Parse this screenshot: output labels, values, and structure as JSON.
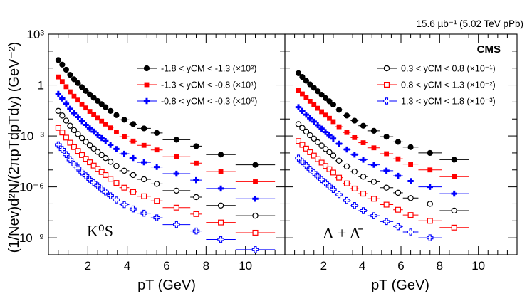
{
  "figure": {
    "luminosity": "15.6 µb⁻¹ (5.02 TeV pPb)",
    "experiment": "CMS",
    "ylabel": "(1/Nev)d²N/(2πpTdpTdy) (GeV⁻²)"
  },
  "chart_data": [
    {
      "type": "scatter",
      "panel": "left",
      "species_label": "K⁰S",
      "xlabel": "pT (GeV)",
      "ylabel": "(1/Nev)d²N/(2πpTdpTdy) (GeV⁻²)",
      "xlim": [
        0,
        12
      ],
      "ylim": [
        1e-10,
        1000.0
      ],
      "yscale": "log",
      "x_ticks": [
        "2",
        "4",
        "6",
        "8",
        "10"
      ],
      "y_ticks": [
        "10³",
        "1",
        "10⁻³",
        "10⁻⁶",
        "10⁻⁹"
      ],
      "legend_position": "top-right",
      "series": [
        {
          "name": "-1.8 < yCM < -1.3 (×10²)",
          "color": "#000000",
          "marker": "filled-circle",
          "x": [
            0.5,
            0.7,
            0.9,
            1.1,
            1.3,
            1.5,
            1.7,
            1.9,
            2.1,
            2.3,
            2.5,
            2.7,
            2.9,
            3.15,
            3.45,
            3.85,
            4.3,
            4.85,
            5.5,
            6.5,
            7.5,
            8.75,
            10.5
          ],
          "xerr": [
            0.1,
            0.1,
            0.1,
            0.1,
            0.1,
            0.1,
            0.1,
            0.1,
            0.1,
            0.1,
            0.1,
            0.1,
            0.1,
            0.15,
            0.15,
            0.25,
            0.2,
            0.35,
            0.3,
            0.7,
            0.3,
            0.75,
            1.0
          ],
          "y": [
            30,
            16,
            8,
            4,
            2.2,
            1.3,
            0.75,
            0.45,
            0.28,
            0.18,
            0.115,
            0.075,
            0.05,
            0.03,
            0.017,
            0.009,
            0.005,
            0.0028,
            0.0015,
            0.0006,
            0.00025,
            8e-05,
            2e-05
          ]
        },
        {
          "name": "-1.3 < yCM < -0.8 (×10¹)",
          "color": "#ff0000",
          "marker": "filled-square",
          "x": [
            0.5,
            0.7,
            0.9,
            1.1,
            1.3,
            1.5,
            1.7,
            1.9,
            2.1,
            2.3,
            2.5,
            2.7,
            2.9,
            3.15,
            3.45,
            3.85,
            4.3,
            4.85,
            5.5,
            6.5,
            7.5,
            8.75,
            10.5
          ],
          "xerr": [
            0.1,
            0.1,
            0.1,
            0.1,
            0.1,
            0.1,
            0.1,
            0.1,
            0.1,
            0.1,
            0.1,
            0.1,
            0.1,
            0.15,
            0.15,
            0.25,
            0.2,
            0.35,
            0.3,
            0.7,
            0.3,
            0.75,
            1.0
          ],
          "y": [
            3,
            1.6,
            0.8,
            0.4,
            0.22,
            0.13,
            0.075,
            0.045,
            0.028,
            0.018,
            0.0115,
            0.0075,
            0.005,
            0.003,
            0.0017,
            0.0009,
            0.0005,
            0.00028,
            0.00015,
            6e-05,
            2.5e-05,
            8e-06,
            2e-06
          ]
        },
        {
          "name": "-0.8 < yCM < -0.3 (×10⁰)",
          "color": "#0000ff",
          "marker": "filled-cross",
          "x": [
            0.5,
            0.7,
            0.9,
            1.1,
            1.3,
            1.5,
            1.7,
            1.9,
            2.1,
            2.3,
            2.5,
            2.7,
            2.9,
            3.15,
            3.45,
            3.85,
            4.3,
            4.85,
            5.5,
            6.5,
            7.5,
            8.75,
            10.5
          ],
          "xerr": [
            0.1,
            0.1,
            0.1,
            0.1,
            0.1,
            0.1,
            0.1,
            0.1,
            0.1,
            0.1,
            0.1,
            0.1,
            0.1,
            0.15,
            0.15,
            0.25,
            0.2,
            0.35,
            0.3,
            0.7,
            0.3,
            0.75,
            1.0
          ],
          "y": [
            0.3,
            0.16,
            0.08,
            0.04,
            0.022,
            0.013,
            0.0075,
            0.0045,
            0.0028,
            0.0018,
            0.00115,
            0.00075,
            0.0005,
            0.0003,
            0.00017,
            9e-05,
            5e-05,
            2.8e-05,
            1.5e-05,
            6e-06,
            2.5e-06,
            8e-07,
            2e-07
          ]
        },
        {
          "name": "0.3 < yCM < 0.8 (×10⁻¹)",
          "color": "#000000",
          "marker": "open-circle",
          "x": [
            0.5,
            0.7,
            0.9,
            1.1,
            1.3,
            1.5,
            1.7,
            1.9,
            2.1,
            2.3,
            2.5,
            2.7,
            2.9,
            3.15,
            3.45,
            3.85,
            4.3,
            4.85,
            5.5,
            6.5,
            7.5,
            8.75,
            10.5
          ],
          "xerr": [
            0.1,
            0.1,
            0.1,
            0.1,
            0.1,
            0.1,
            0.1,
            0.1,
            0.1,
            0.1,
            0.1,
            0.1,
            0.1,
            0.15,
            0.15,
            0.25,
            0.2,
            0.35,
            0.3,
            0.7,
            0.3,
            0.75,
            1.0
          ],
          "y": [
            0.03,
            0.016,
            0.008,
            0.004,
            0.0022,
            0.0013,
            0.00075,
            0.00045,
            0.00028,
            0.00018,
            0.000115,
            7.5e-05,
            5e-05,
            3e-05,
            1.7e-05,
            9e-06,
            5e-06,
            2.8e-06,
            1.5e-06,
            6e-07,
            2.5e-07,
            8e-08,
            2e-08
          ]
        },
        {
          "name": "0.8 < yCM < 1.3 (×10⁻²)",
          "color": "#ff0000",
          "marker": "open-square",
          "x": [
            0.5,
            0.7,
            0.9,
            1.1,
            1.3,
            1.5,
            1.7,
            1.9,
            2.1,
            2.3,
            2.5,
            2.7,
            2.9,
            3.15,
            3.45,
            3.85,
            4.3,
            4.85,
            5.5,
            6.5,
            7.5,
            8.75,
            10.5
          ],
          "xerr": [
            0.1,
            0.1,
            0.1,
            0.1,
            0.1,
            0.1,
            0.1,
            0.1,
            0.1,
            0.1,
            0.1,
            0.1,
            0.1,
            0.15,
            0.15,
            0.25,
            0.2,
            0.35,
            0.3,
            0.7,
            0.3,
            0.75,
            1.0
          ],
          "y": [
            0.003,
            0.0016,
            0.0008,
            0.0004,
            0.00022,
            0.00013,
            7.5e-05,
            4.5e-05,
            2.8e-05,
            1.8e-05,
            1.15e-05,
            7.5e-06,
            5e-06,
            3e-06,
            1.7e-06,
            9e-07,
            5e-07,
            2.8e-07,
            1.5e-07,
            6e-08,
            2.5e-08,
            8e-09,
            2e-09
          ]
        },
        {
          "name": "1.3 < yCM < 1.8 (×10⁻³)",
          "color": "#0000ff",
          "marker": "open-cross",
          "x": [
            0.5,
            0.7,
            0.9,
            1.1,
            1.3,
            1.5,
            1.7,
            1.9,
            2.1,
            2.3,
            2.5,
            2.7,
            2.9,
            3.15,
            3.45,
            3.85,
            4.3,
            4.85,
            5.5,
            6.5,
            7.5,
            8.75,
            10.5
          ],
          "xerr": [
            0.1,
            0.1,
            0.1,
            0.1,
            0.1,
            0.1,
            0.1,
            0.1,
            0.1,
            0.1,
            0.1,
            0.1,
            0.1,
            0.15,
            0.15,
            0.25,
            0.2,
            0.35,
            0.3,
            0.7,
            0.3,
            0.75,
            1.0
          ],
          "y": [
            0.0003,
            0.00016,
            8e-05,
            4e-05,
            2.2e-05,
            1.3e-05,
            7.5e-06,
            4.5e-06,
            2.8e-06,
            1.8e-06,
            1.15e-06,
            7.5e-07,
            5e-07,
            3e-07,
            1.7e-07,
            9e-08,
            5e-08,
            2.8e-08,
            1.5e-08,
            6e-09,
            2.5e-09,
            8e-10,
            2e-10
          ]
        }
      ]
    },
    {
      "type": "scatter",
      "panel": "right",
      "species_label": "Λ + Λ̄",
      "xlabel": "pT (GeV)",
      "xlim": [
        0,
        12
      ],
      "ylim": [
        1e-10,
        1000.0
      ],
      "yscale": "log",
      "x_ticks": [
        "2",
        "4",
        "6",
        "8",
        "10"
      ],
      "legend_position": "top-right",
      "series": [
        {
          "name": "-1.8 < yCM < -1.3 (×10²)",
          "color": "#000000",
          "marker": "filled-circle",
          "x": [
            0.7,
            0.9,
            1.1,
            1.3,
            1.5,
            1.7,
            1.9,
            2.1,
            2.3,
            2.5,
            2.8,
            3.2,
            3.6,
            4.05,
            4.6,
            5.25,
            5.85,
            6.5,
            7.5,
            8.75
          ],
          "xerr": [
            0.1,
            0.1,
            0.1,
            0.1,
            0.1,
            0.1,
            0.1,
            0.1,
            0.1,
            0.1,
            0.2,
            0.2,
            0.2,
            0.25,
            0.3,
            0.35,
            0.25,
            0.4,
            0.6,
            0.75
          ],
          "y": [
            5,
            3,
            1.8,
            1.1,
            0.7,
            0.43,
            0.27,
            0.17,
            0.11,
            0.07,
            0.035,
            0.016,
            0.008,
            0.004,
            0.002,
            0.0009,
            0.00045,
            0.00022,
            0.0001,
            4e-05
          ]
        },
        {
          "name": "-1.3 < yCM < -0.8 (×10¹)",
          "color": "#ff0000",
          "marker": "filled-square",
          "x": [
            0.7,
            0.9,
            1.1,
            1.3,
            1.5,
            1.7,
            1.9,
            2.1,
            2.3,
            2.5,
            2.8,
            3.2,
            3.6,
            4.05,
            4.6,
            5.25,
            5.85,
            6.5,
            7.5,
            8.75
          ],
          "xerr": [
            0.1,
            0.1,
            0.1,
            0.1,
            0.1,
            0.1,
            0.1,
            0.1,
            0.1,
            0.1,
            0.2,
            0.2,
            0.2,
            0.25,
            0.3,
            0.35,
            0.25,
            0.4,
            0.6,
            0.75
          ],
          "y": [
            0.5,
            0.3,
            0.18,
            0.11,
            0.07,
            0.043,
            0.027,
            0.017,
            0.011,
            0.007,
            0.0035,
            0.0016,
            0.0008,
            0.0004,
            0.0002,
            9e-05,
            4.5e-05,
            2.2e-05,
            1e-05,
            4e-06
          ]
        },
        {
          "name": "-0.8 < yCM < -0.3 (×10⁰)",
          "color": "#0000ff",
          "marker": "filled-cross",
          "x": [
            0.7,
            0.9,
            1.1,
            1.3,
            1.5,
            1.7,
            1.9,
            2.1,
            2.3,
            2.5,
            2.8,
            3.2,
            3.6,
            4.05,
            4.6,
            5.25,
            5.85,
            6.5,
            7.5,
            8.75
          ],
          "xerr": [
            0.1,
            0.1,
            0.1,
            0.1,
            0.1,
            0.1,
            0.1,
            0.1,
            0.1,
            0.1,
            0.2,
            0.2,
            0.2,
            0.25,
            0.3,
            0.35,
            0.25,
            0.4,
            0.6,
            0.75
          ],
          "y": [
            0.05,
            0.03,
            0.018,
            0.011,
            0.007,
            0.0043,
            0.0027,
            0.0017,
            0.0011,
            0.0007,
            0.00035,
            0.00016,
            8e-05,
            4e-05,
            2e-05,
            9e-06,
            4.5e-06,
            2.2e-06,
            1e-06,
            4e-07
          ]
        },
        {
          "name": "0.3 < yCM < 0.8 (×10⁻¹)",
          "color": "#000000",
          "marker": "open-circle",
          "x": [
            0.7,
            0.9,
            1.1,
            1.3,
            1.5,
            1.7,
            1.9,
            2.1,
            2.3,
            2.5,
            2.8,
            3.2,
            3.6,
            4.05,
            4.6,
            5.25,
            5.85,
            6.5,
            7.5,
            8.75
          ],
          "xerr": [
            0.1,
            0.1,
            0.1,
            0.1,
            0.1,
            0.1,
            0.1,
            0.1,
            0.1,
            0.1,
            0.2,
            0.2,
            0.2,
            0.25,
            0.3,
            0.35,
            0.25,
            0.4,
            0.6,
            0.75
          ],
          "y": [
            0.005,
            0.003,
            0.0018,
            0.0011,
            0.0007,
            0.00043,
            0.00027,
            0.00017,
            0.00011,
            7e-05,
            3.5e-05,
            1.6e-05,
            8e-06,
            4e-06,
            2e-06,
            9e-07,
            4.5e-07,
            2.2e-07,
            1e-07,
            4e-08
          ]
        },
        {
          "name": "0.8 < yCM < 1.3 (×10⁻²)",
          "color": "#ff0000",
          "marker": "open-square",
          "x": [
            0.7,
            0.9,
            1.1,
            1.3,
            1.5,
            1.7,
            1.9,
            2.1,
            2.3,
            2.5,
            2.8,
            3.2,
            3.6,
            4.05,
            4.6,
            5.25,
            5.85,
            6.5,
            7.5,
            8.75
          ],
          "xerr": [
            0.1,
            0.1,
            0.1,
            0.1,
            0.1,
            0.1,
            0.1,
            0.1,
            0.1,
            0.1,
            0.2,
            0.2,
            0.2,
            0.25,
            0.3,
            0.35,
            0.25,
            0.4,
            0.6,
            0.75
          ],
          "y": [
            0.0005,
            0.0003,
            0.00018,
            0.00011,
            7e-05,
            4.3e-05,
            2.7e-05,
            1.7e-05,
            1.1e-05,
            7e-06,
            3.5e-06,
            1.6e-06,
            8e-07,
            4e-07,
            2e-07,
            9e-08,
            4.5e-08,
            2.2e-08,
            1e-08,
            4e-09
          ]
        },
        {
          "name": "1.3 < yCM < 1.8 (×10⁻³)",
          "color": "#0000ff",
          "marker": "open-cross",
          "x": [
            0.7,
            0.9,
            1.1,
            1.3,
            1.5,
            1.7,
            1.9,
            2.1,
            2.3,
            2.5,
            2.8,
            3.2,
            3.6,
            4.05,
            4.6,
            5.25,
            5.85,
            6.5,
            7.5
          ],
          "xerr": [
            0.1,
            0.1,
            0.1,
            0.1,
            0.1,
            0.1,
            0.1,
            0.1,
            0.1,
            0.1,
            0.2,
            0.2,
            0.2,
            0.25,
            0.3,
            0.35,
            0.25,
            0.4,
            0.6
          ],
          "y": [
            5e-05,
            3e-05,
            1.8e-05,
            1.1e-05,
            7e-06,
            4.3e-06,
            2.7e-06,
            1.7e-06,
            1.1e-06,
            7e-07,
            3.5e-07,
            1.6e-07,
            8e-08,
            4e-08,
            2e-08,
            9e-09,
            4.5e-09,
            2.2e-09,
            1e-09
          ]
        }
      ]
    }
  ]
}
